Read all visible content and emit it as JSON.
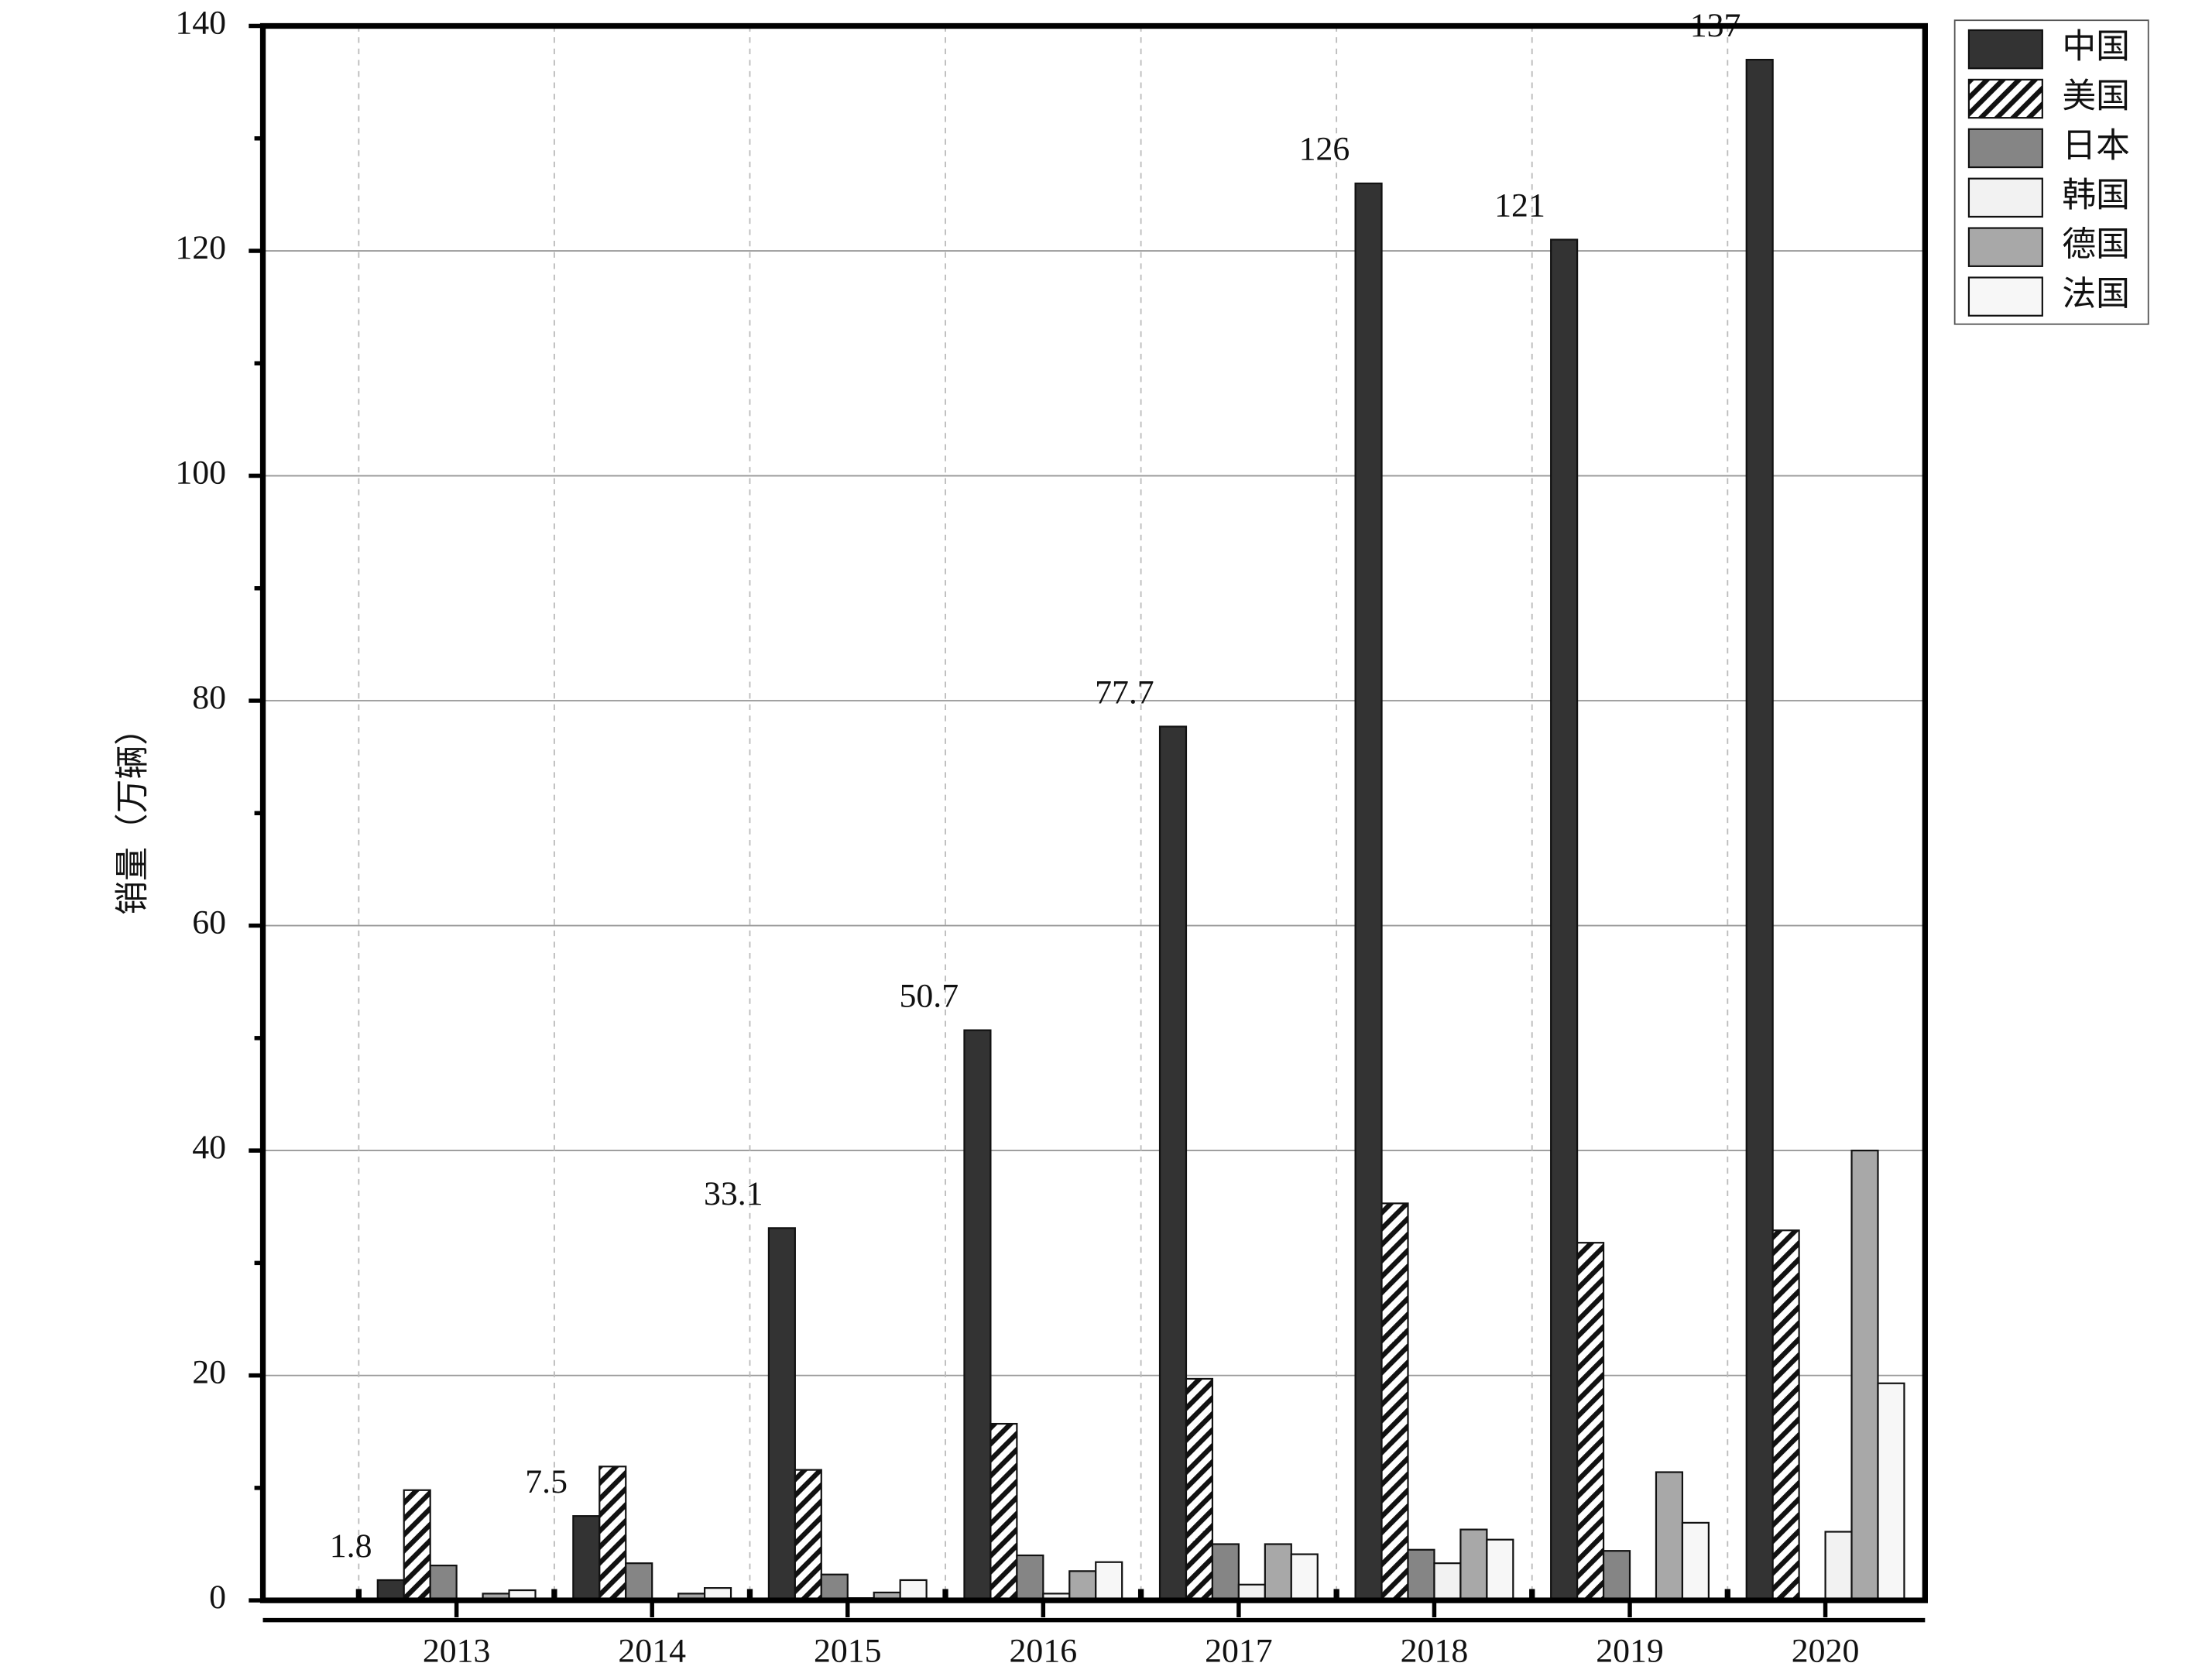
{
  "chart_data": {
    "type": "bar",
    "y_label": "销量（万辆）",
    "categories": [
      "2013",
      "2014",
      "2015",
      "2016",
      "2017",
      "2018",
      "2019",
      "2020"
    ],
    "series": [
      {
        "name": "中国",
        "color": "#333333",
        "values": [
          1.8,
          7.5,
          33.1,
          50.7,
          77.7,
          126,
          121,
          137
        ]
      },
      {
        "name": "美国",
        "color": "#ffffff",
        "pattern": "hatch",
        "values": [
          9.8,
          11.9,
          11.6,
          15.7,
          19.7,
          35.3,
          31.8,
          32.9
        ]
      },
      {
        "name": "日本",
        "color": "#858585",
        "values": [
          3.1,
          3.3,
          2.3,
          4.0,
          5.0,
          4.5,
          4.4,
          null
        ]
      },
      {
        "name": "韩国",
        "color": "#f2f2f2",
        "values": [
          null,
          null,
          0.2,
          0.6,
          1.4,
          3.3,
          null,
          6.1
        ]
      },
      {
        "name": "德国",
        "color": "#a8a8a8",
        "values": [
          0.6,
          0.6,
          0.7,
          2.6,
          5.0,
          6.3,
          11.4,
          40.0
        ]
      },
      {
        "name": "法国",
        "color": "#f7f7f7",
        "values": [
          0.9,
          1.1,
          1.8,
          3.4,
          4.1,
          5.4,
          6.9,
          19.3
        ]
      }
    ],
    "label_series": 0,
    "ylim": [
      0,
      140
    ],
    "yticks": [
      0,
      20,
      40,
      60,
      80,
      100,
      120,
      140
    ],
    "grid": true,
    "legend": "upper right"
  }
}
